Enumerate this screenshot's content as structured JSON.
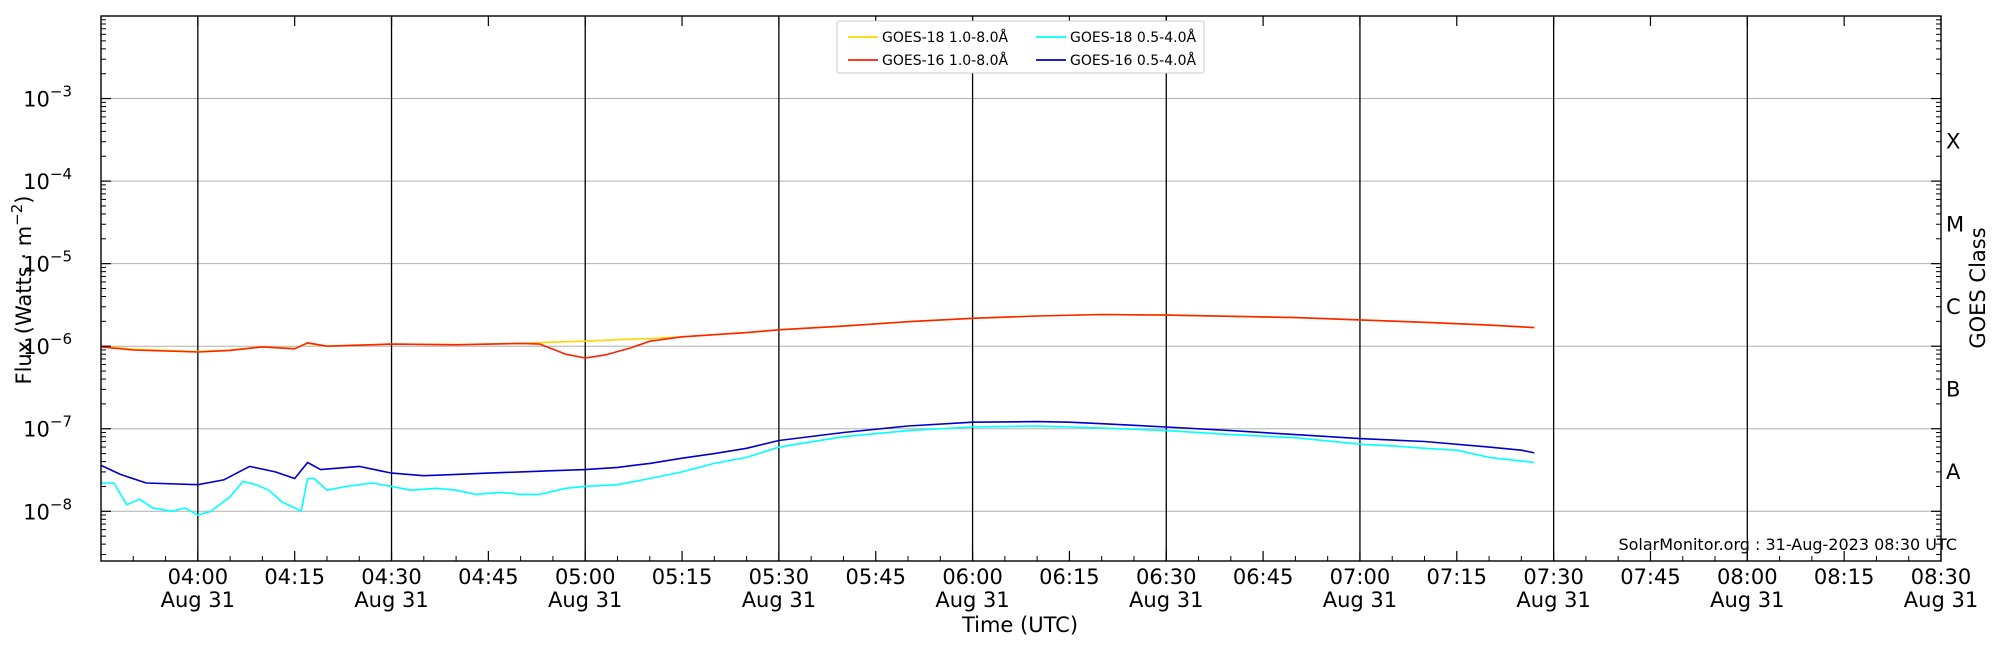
{
  "chart_data": {
    "type": "line",
    "xlabel": "Time (UTC)",
    "ylabel": "Flux (Watts · m⁻²)",
    "y2label": "GOES Class",
    "credit": "SolarMonitor.org : 31-Aug-2023 08:30 UTC",
    "y_scale": "log",
    "ylim": [
      2.5e-09,
      0.01
    ],
    "xlim": [
      "03:45",
      "08:30"
    ],
    "grid": "horizontal at decades; vertical lines at half hours",
    "legend_position": "top-center",
    "x_ticks": [
      {
        "time": "04:00",
        "label": "04:00",
        "date": "Aug 31"
      },
      {
        "time": "04:15",
        "label": "04:15",
        "date": ""
      },
      {
        "time": "04:30",
        "label": "04:30",
        "date": "Aug 31"
      },
      {
        "time": "04:45",
        "label": "04:45",
        "date": ""
      },
      {
        "time": "05:00",
        "label": "05:00",
        "date": "Aug 31"
      },
      {
        "time": "05:15",
        "label": "05:15",
        "date": ""
      },
      {
        "time": "05:30",
        "label": "05:30",
        "date": "Aug 31"
      },
      {
        "time": "05:45",
        "label": "05:45",
        "date": ""
      },
      {
        "time": "06:00",
        "label": "06:00",
        "date": "Aug 31"
      },
      {
        "time": "06:15",
        "label": "06:15",
        "date": ""
      },
      {
        "time": "06:30",
        "label": "06:30",
        "date": "Aug 31"
      },
      {
        "time": "06:45",
        "label": "06:45",
        "date": ""
      },
      {
        "time": "07:00",
        "label": "07:00",
        "date": "Aug 31"
      },
      {
        "time": "07:15",
        "label": "07:15",
        "date": ""
      },
      {
        "time": "07:30",
        "label": "07:30",
        "date": "Aug 31"
      },
      {
        "time": "07:45",
        "label": "07:45",
        "date": ""
      },
      {
        "time": "08:00",
        "label": "08:00",
        "date": "Aug 31"
      },
      {
        "time": "08:15",
        "label": "08:15",
        "date": ""
      },
      {
        "time": "08:30",
        "label": "08:30",
        "date": "Aug 31"
      }
    ],
    "y_ticks": [
      {
        "value": 1e-08,
        "label": "10",
        "exp": "−8"
      },
      {
        "value": 1e-07,
        "label": "10",
        "exp": "−7"
      },
      {
        "value": 1e-06,
        "label": "10",
        "exp": "−6"
      },
      {
        "value": 1e-05,
        "label": "10",
        "exp": "−5"
      },
      {
        "value": 0.0001,
        "label": "10",
        "exp": "−4"
      },
      {
        "value": 0.001,
        "label": "10",
        "exp": "−3"
      }
    ],
    "goes_classes": [
      {
        "label": "A",
        "value": 3e-08
      },
      {
        "label": "B",
        "value": 3e-07
      },
      {
        "label": "C",
        "value": 3e-06
      },
      {
        "label": "M",
        "value": 3e-05
      },
      {
        "label": "X",
        "value": 0.0003
      }
    ],
    "series": [
      {
        "name": "GOES-18 1.0-8.0Å",
        "color": "#ffd700",
        "points": [
          [
            "03:45",
            1e-06
          ],
          [
            "03:50",
            9.2e-07
          ],
          [
            "04:00",
            8.6e-07
          ],
          [
            "04:05",
            9e-07
          ],
          [
            "04:10",
            9.8e-07
          ],
          [
            "04:15",
            9.4e-07
          ],
          [
            "04:17",
            1.08e-06
          ],
          [
            "04:20",
            1e-06
          ],
          [
            "04:30",
            1.06e-06
          ],
          [
            "04:40",
            1.05e-06
          ],
          [
            "04:50",
            1.08e-06
          ],
          [
            "04:55",
            1.12e-06
          ],
          [
            "05:00",
            1.15e-06
          ],
          [
            "05:05",
            1.2e-06
          ],
          [
            "05:10",
            1.24e-06
          ],
          [
            "05:15",
            1.3e-06
          ],
          [
            "05:20",
            1.38e-06
          ],
          [
            "05:25",
            1.46e-06
          ],
          [
            "05:30",
            1.58e-06
          ],
          [
            "05:40",
            1.75e-06
          ],
          [
            "05:50",
            1.98e-06
          ],
          [
            "06:00",
            2.18e-06
          ],
          [
            "06:10",
            2.32e-06
          ],
          [
            "06:20",
            2.42e-06
          ],
          [
            "06:30",
            2.38e-06
          ],
          [
            "06:40",
            2.3e-06
          ],
          [
            "06:50",
            2.22e-06
          ],
          [
            "07:00",
            2.08e-06
          ],
          [
            "07:10",
            1.95e-06
          ],
          [
            "07:20",
            1.8e-06
          ],
          [
            "07:27",
            1.68e-06
          ]
        ]
      },
      {
        "name": "GOES-16 1.0-8.0Å",
        "color": "#ff2200",
        "points": [
          [
            "03:45",
            9.8e-07
          ],
          [
            "03:50",
            9e-07
          ],
          [
            "04:00",
            8.5e-07
          ],
          [
            "04:05",
            8.9e-07
          ],
          [
            "04:10",
            9.8e-07
          ],
          [
            "04:15",
            9.3e-07
          ],
          [
            "04:17",
            1.1e-06
          ],
          [
            "04:20",
            1e-06
          ],
          [
            "04:30",
            1.06e-06
          ],
          [
            "04:40",
            1.04e-06
          ],
          [
            "04:50",
            1.08e-06
          ],
          [
            "04:53",
            1.06e-06
          ],
          [
            "04:57",
            8e-07
          ],
          [
            "05:00",
            7.2e-07
          ],
          [
            "05:03",
            7.8e-07
          ],
          [
            "05:07",
            9.5e-07
          ],
          [
            "05:10",
            1.15e-06
          ],
          [
            "05:15",
            1.3e-06
          ],
          [
            "05:20",
            1.38e-06
          ],
          [
            "05:25",
            1.46e-06
          ],
          [
            "05:30",
            1.58e-06
          ],
          [
            "05:40",
            1.75e-06
          ],
          [
            "05:50",
            1.98e-06
          ],
          [
            "06:00",
            2.18e-06
          ],
          [
            "06:10",
            2.32e-06
          ],
          [
            "06:20",
            2.42e-06
          ],
          [
            "06:30",
            2.38e-06
          ],
          [
            "06:40",
            2.3e-06
          ],
          [
            "06:50",
            2.22e-06
          ],
          [
            "07:00",
            2.08e-06
          ],
          [
            "07:10",
            1.95e-06
          ],
          [
            "07:20",
            1.8e-06
          ],
          [
            "07:27",
            1.68e-06
          ]
        ]
      },
      {
        "name": "GOES-18 0.5-4.0Å",
        "color": "#00ffff",
        "points": [
          [
            "03:45",
            2.2e-08
          ],
          [
            "03:47",
            2.2e-08
          ],
          [
            "03:49",
            1.2e-08
          ],
          [
            "03:51",
            1.4e-08
          ],
          [
            "03:53",
            1.1e-08
          ],
          [
            "03:56",
            1e-08
          ],
          [
            "03:58",
            1.1e-08
          ],
          [
            "04:00",
            9e-09
          ],
          [
            "04:02",
            1e-08
          ],
          [
            "04:05",
            1.5e-08
          ],
          [
            "04:07",
            2.3e-08
          ],
          [
            "04:09",
            2.1e-08
          ],
          [
            "04:11",
            1.8e-08
          ],
          [
            "04:13",
            1.3e-08
          ],
          [
            "04:15",
            1.1e-08
          ],
          [
            "04:16",
            1e-08
          ],
          [
            "04:17",
            2.5e-08
          ],
          [
            "04:18",
            2.5e-08
          ],
          [
            "04:20",
            1.8e-08
          ],
          [
            "04:23",
            2e-08
          ],
          [
            "04:27",
            2.2e-08
          ],
          [
            "04:30",
            2e-08
          ],
          [
            "04:33",
            1.8e-08
          ],
          [
            "04:37",
            1.9e-08
          ],
          [
            "04:40",
            1.8e-08
          ],
          [
            "04:43",
            1.6e-08
          ],
          [
            "04:47",
            1.7e-08
          ],
          [
            "04:50",
            1.6e-08
          ],
          [
            "04:53",
            1.6e-08
          ],
          [
            "04:57",
            1.9e-08
          ],
          [
            "05:00",
            2e-08
          ],
          [
            "05:05",
            2.1e-08
          ],
          [
            "05:10",
            2.5e-08
          ],
          [
            "05:15",
            3e-08
          ],
          [
            "05:20",
            3.8e-08
          ],
          [
            "05:25",
            4.5e-08
          ],
          [
            "05:30",
            6e-08
          ],
          [
            "05:40",
            8e-08
          ],
          [
            "05:50",
            9.5e-08
          ],
          [
            "06:00",
            1.05e-07
          ],
          [
            "06:10",
            1.08e-07
          ],
          [
            "06:20",
            1.02e-07
          ],
          [
            "06:30",
            9.5e-08
          ],
          [
            "06:40",
            8.5e-08
          ],
          [
            "06:50",
            7.8e-08
          ],
          [
            "07:00",
            6.5e-08
          ],
          [
            "07:05",
            6.2e-08
          ],
          [
            "07:10",
            5.8e-08
          ],
          [
            "07:15",
            5.5e-08
          ],
          [
            "07:20",
            4.5e-08
          ],
          [
            "07:27",
            3.9e-08
          ]
        ]
      },
      {
        "name": "GOES-16 0.5-4.0Å",
        "color": "#0000cc",
        "points": [
          [
            "03:45",
            3.6e-08
          ],
          [
            "03:48",
            2.8e-08
          ],
          [
            "03:52",
            2.2e-08
          ],
          [
            "04:00",
            2.1e-08
          ],
          [
            "04:04",
            2.4e-08
          ],
          [
            "04:08",
            3.5e-08
          ],
          [
            "04:12",
            3e-08
          ],
          [
            "04:15",
            2.5e-08
          ],
          [
            "04:17",
            3.9e-08
          ],
          [
            "04:19",
            3.2e-08
          ],
          [
            "04:25",
            3.5e-08
          ],
          [
            "04:30",
            2.9e-08
          ],
          [
            "04:35",
            2.7e-08
          ],
          [
            "04:40",
            2.8e-08
          ],
          [
            "04:45",
            2.9e-08
          ],
          [
            "04:50",
            3e-08
          ],
          [
            "04:55",
            3.1e-08
          ],
          [
            "05:00",
            3.2e-08
          ],
          [
            "05:05",
            3.4e-08
          ],
          [
            "05:10",
            3.8e-08
          ],
          [
            "05:15",
            4.4e-08
          ],
          [
            "05:20",
            5e-08
          ],
          [
            "05:25",
            5.8e-08
          ],
          [
            "05:30",
            7.2e-08
          ],
          [
            "05:40",
            9e-08
          ],
          [
            "05:50",
            1.08e-07
          ],
          [
            "06:00",
            1.2e-07
          ],
          [
            "06:10",
            1.22e-07
          ],
          [
            "06:15",
            1.2e-07
          ],
          [
            "06:20",
            1.15e-07
          ],
          [
            "06:30",
            1.05e-07
          ],
          [
            "06:40",
            9.5e-08
          ],
          [
            "06:50",
            8.5e-08
          ],
          [
            "07:00",
            7.6e-08
          ],
          [
            "07:10",
            7e-08
          ],
          [
            "07:20",
            6e-08
          ],
          [
            "07:25",
            5.5e-08
          ],
          [
            "07:27",
            5.1e-08
          ]
        ]
      }
    ]
  }
}
